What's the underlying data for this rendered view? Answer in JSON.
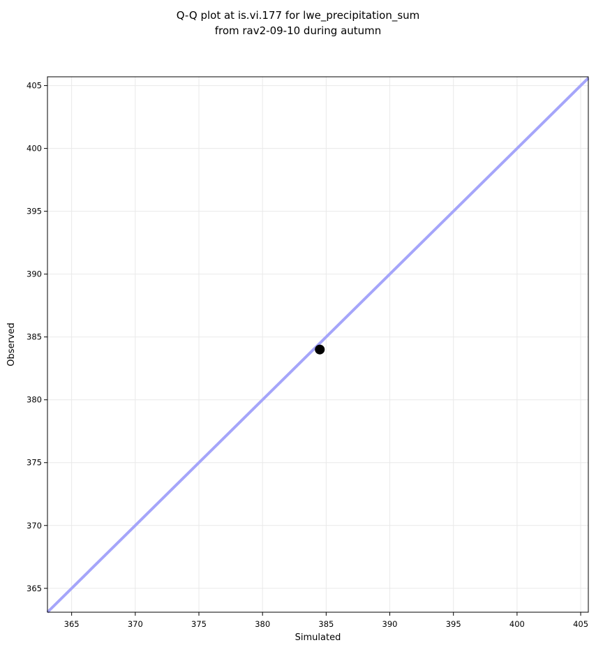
{
  "figure": {
    "background": "#ffffff"
  },
  "chart_data": {
    "type": "scatter",
    "title": "Q-Q plot at is.vi.177 for lwe_precipitation_sum\nfrom rav2-09-10 during autumn",
    "title_lines": [
      "Q-Q plot at is.vi.177 for lwe_precipitation_sum",
      "from rav2-09-10 during autumn"
    ],
    "xlabel": "Simulated",
    "ylabel": "Observed",
    "xlim": [
      363.1,
      405.6
    ],
    "ylim": [
      363.1,
      405.7
    ],
    "xticks": [
      365,
      370,
      375,
      380,
      385,
      390,
      395,
      400,
      405
    ],
    "yticks": [
      365,
      370,
      375,
      380,
      385,
      390,
      395,
      400,
      405
    ],
    "grid": true,
    "legend": "none",
    "points": [
      {
        "x": 384.5,
        "y": 384.0
      }
    ],
    "identity_line": {
      "from": 363.1,
      "to": 405.6
    },
    "colors": {
      "identity_line": "#a5a5fa",
      "point": "#000000",
      "grid": "#e9e9e9",
      "spine": "#000000",
      "text": "#000000"
    },
    "style": {
      "line_width": 4,
      "marker_radius": 7,
      "tick_length": 5
    }
  }
}
